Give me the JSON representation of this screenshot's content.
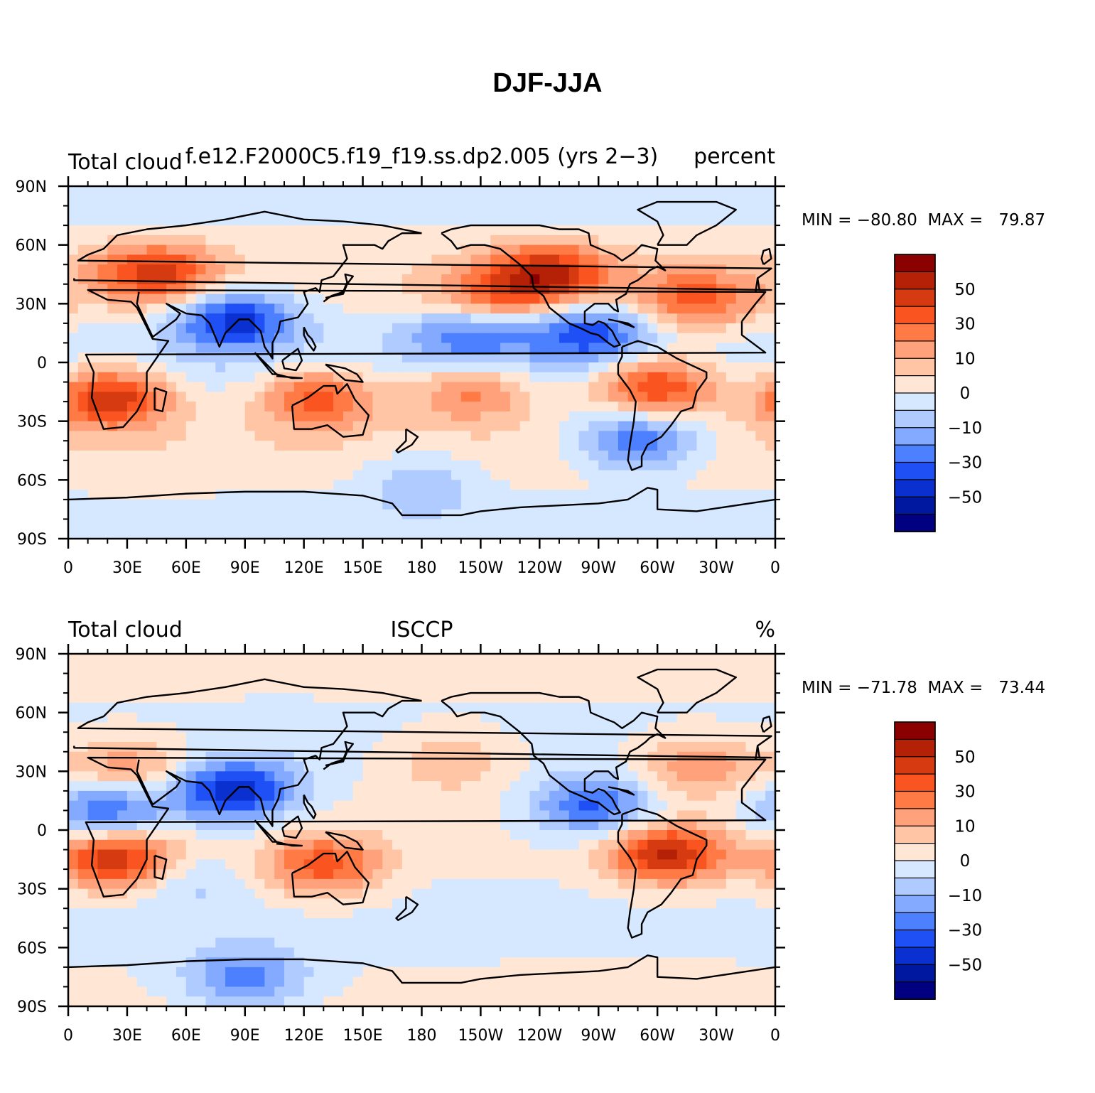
{
  "figure": {
    "title": "DJF-JJA"
  },
  "panels": [
    {
      "left_label": "Total cloud",
      "center_label": "f.e12.F2000C5.f19_f19.ss.dp2.005 (yrs 2−3)",
      "right_label": "percent",
      "stats": "MIN = −80.80  MAX =   79.87",
      "field": {
        "description": "model DJF minus JJA total cloud",
        "features": [
          {
            "name": "Eurasia mid-latitude positive",
            "lon": 45,
            "lat": 45,
            "value": 50
          },
          {
            "name": "N Africa / India negative",
            "lon": 85,
            "lat": 22,
            "value": -55
          },
          {
            "name": "S Africa positive",
            "lon": 22,
            "lat": -18,
            "value": 60
          },
          {
            "name": "Australia positive",
            "lon": 128,
            "lat": -18,
            "value": 45
          },
          {
            "name": "N Pacific positive",
            "lon": 215,
            "lat": 32,
            "value": 35
          },
          {
            "name": "NE Pacific positive",
            "lon": 245,
            "lat": 45,
            "value": 55
          },
          {
            "name": "Tropical Pacific negative",
            "lon": 205,
            "lat": 15,
            "value": -40
          },
          {
            "name": "S Pacific positive",
            "lon": 205,
            "lat": -15,
            "value": 35
          },
          {
            "name": "Amazon positive",
            "lon": 300,
            "lat": -12,
            "value": 55
          },
          {
            "name": "N Atlantic positive",
            "lon": 320,
            "lat": 32,
            "value": 40
          },
          {
            "name": "Central America negative",
            "lon": 265,
            "lat": 15,
            "value": -45
          },
          {
            "name": "Patagonia negative",
            "lon": 290,
            "lat": -40,
            "value": -45
          },
          {
            "name": "Southern Ocean negative",
            "lon": 180,
            "lat": -60,
            "value": -20
          }
        ]
      }
    },
    {
      "left_label": "Total cloud",
      "center_label": "ISCCP",
      "right_label": "%",
      "stats": "MIN = −71.78  MAX =   73.44",
      "field": {
        "description": "ISCCP DJF minus JJA total cloud",
        "features": [
          {
            "name": "N Africa / Med positive",
            "lon": 30,
            "lat": 32,
            "value": 30
          },
          {
            "name": "India negative",
            "lon": 85,
            "lat": 20,
            "value": -60
          },
          {
            "name": "Sahel negative",
            "lon": 20,
            "lat": 10,
            "value": -45
          },
          {
            "name": "S Africa positive",
            "lon": 25,
            "lat": -15,
            "value": 60
          },
          {
            "name": "Australia positive",
            "lon": 130,
            "lat": -18,
            "value": 45
          },
          {
            "name": "N Pacific positive",
            "lon": 195,
            "lat": 35,
            "value": 20
          },
          {
            "name": "Central America negative",
            "lon": 268,
            "lat": 12,
            "value": -45
          },
          {
            "name": "Amazon positive",
            "lon": 305,
            "lat": -12,
            "value": 60
          },
          {
            "name": "N Atlantic positive",
            "lon": 320,
            "lat": 32,
            "value": 30
          },
          {
            "name": "Antarctica negative",
            "lon": 90,
            "lat": -75,
            "value": -35
          },
          {
            "name": "S Indian Ocean negative",
            "lon": 60,
            "lat": -25,
            "value": -15
          }
        ]
      }
    }
  ],
  "colorbar": {
    "label_values": [
      "50",
      "30",
      "10",
      "0",
      "−10",
      "−30",
      "−50"
    ],
    "colors": [
      "#8b0000",
      "#b52106",
      "#d63a10",
      "#fa5520",
      "#ff7a45",
      "#ffa17a",
      "#ffc5a5",
      "#ffe6d5",
      "#d5e8ff",
      "#afcbff",
      "#84aaff",
      "#4d80ff",
      "#1f50f5",
      "#0a30d0",
      "#0018a0",
      "#000080"
    ]
  },
  "axes": {
    "lat_labels": [
      "90N",
      "60N",
      "30N",
      "0",
      "30S",
      "60S",
      "90S"
    ],
    "lon_labels": [
      "0",
      "30E",
      "60E",
      "90E",
      "120E",
      "150E",
      "180",
      "150W",
      "120W",
      "90W",
      "60W",
      "30W",
      "0"
    ]
  }
}
